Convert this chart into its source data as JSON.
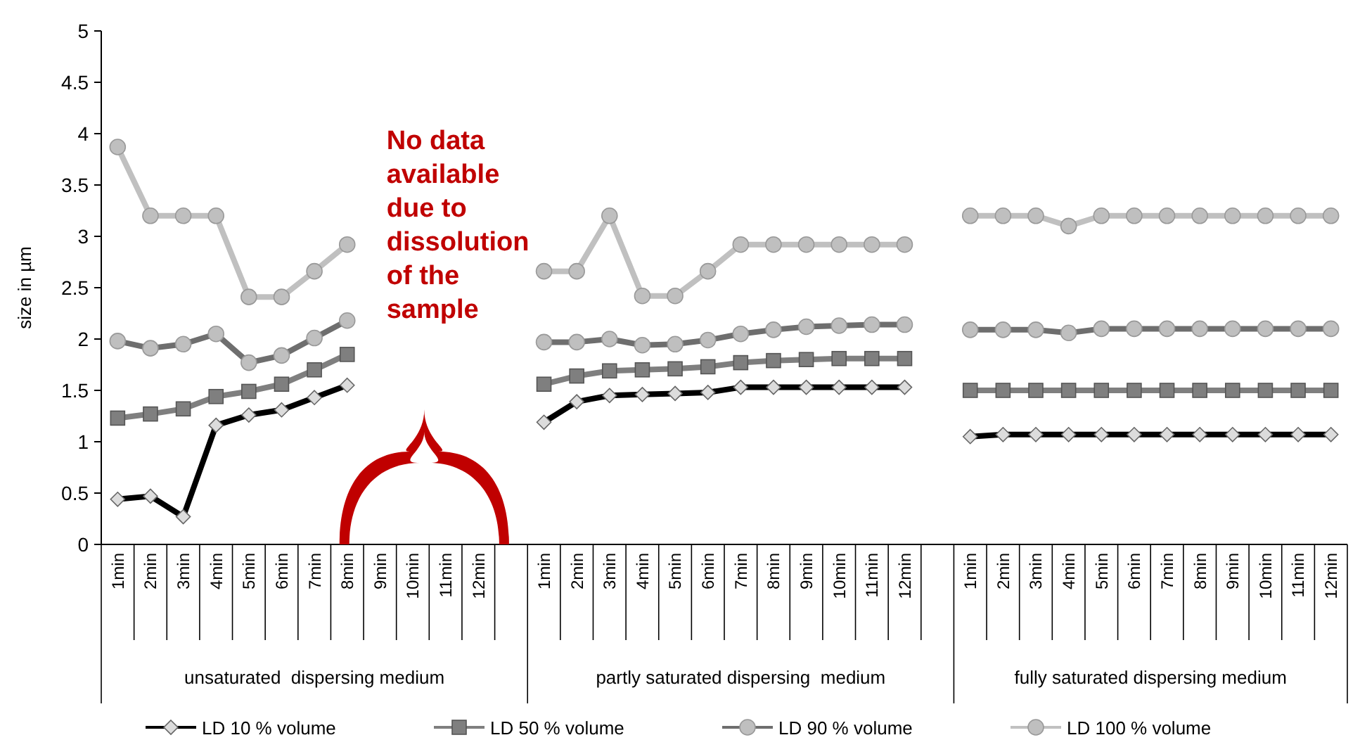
{
  "chart_data": {
    "type": "line",
    "ylabel": "size in µm",
    "ylim": [
      0,
      5
    ],
    "yticks": [
      0,
      0.5,
      1,
      1.5,
      2,
      2.5,
      3,
      3.5,
      4,
      4.5,
      5
    ],
    "grid": false,
    "legend": "bottom",
    "line_style": "solid",
    "categories": [
      "1min",
      "2min",
      "3min",
      "4min",
      "5min",
      "6min",
      "7min",
      "8min",
      "9min",
      "10min",
      "11min",
      "12min",
      null,
      "1min",
      "2min",
      "3min",
      "4min",
      "5min",
      "6min",
      "7min",
      "8min",
      "9min",
      "10min",
      "11min",
      "12min",
      null,
      "1min",
      "2min",
      "3min",
      "4min",
      "5min",
      "6min",
      "7min",
      "8min",
      "9min",
      "10min",
      "11min",
      "12min"
    ],
    "annotations": [
      "No data available due to dissolution of the sample",
      "unsaturated  dispersing medium",
      "partly saturated dispersing  medium",
      "fully saturated dispersing medium"
    ],
    "series": [
      {
        "name": "LD 10 % volume",
        "color": "#000000",
        "marker": "diamond",
        "values": [
          0.44,
          0.47,
          0.27,
          1.16,
          1.26,
          1.31,
          1.43,
          1.55,
          null,
          null,
          null,
          null,
          null,
          1.19,
          1.39,
          1.45,
          1.46,
          1.47,
          1.48,
          1.53,
          1.53,
          1.53,
          1.53,
          1.53,
          1.53,
          null,
          1.05,
          1.07,
          1.07,
          1.07,
          1.07,
          1.07,
          1.07,
          1.07,
          1.07,
          1.07,
          1.07,
          1.07
        ]
      },
      {
        "name": "LD 50 % volume",
        "color": "#7f7f7f",
        "marker": "square",
        "values": [
          1.23,
          1.27,
          1.32,
          1.44,
          1.49,
          1.56,
          1.7,
          1.85,
          null,
          null,
          null,
          null,
          null,
          1.56,
          1.64,
          1.69,
          1.7,
          1.71,
          1.73,
          1.77,
          1.79,
          1.8,
          1.81,
          1.81,
          1.81,
          null,
          1.5,
          1.5,
          1.5,
          1.5,
          1.5,
          1.5,
          1.5,
          1.5,
          1.5,
          1.5,
          1.5,
          1.5
        ]
      },
      {
        "name": "LD 90 % volume",
        "color": "#6e6e6e",
        "marker": "circle",
        "values": [
          1.98,
          1.91,
          1.95,
          2.05,
          1.77,
          1.84,
          2.01,
          2.18,
          null,
          null,
          null,
          null,
          null,
          1.97,
          1.97,
          2.0,
          1.94,
          1.95,
          1.99,
          2.05,
          2.09,
          2.12,
          2.13,
          2.14,
          2.14,
          null,
          2.09,
          2.09,
          2.09,
          2.06,
          2.1,
          2.1,
          2.1,
          2.1,
          2.1,
          2.1,
          2.1,
          2.1
        ]
      },
      {
        "name": "LD 100 % volume",
        "color": "#c0c0c0",
        "marker": "circle",
        "values": [
          3.87,
          3.2,
          3.2,
          3.2,
          2.41,
          2.41,
          2.66,
          2.92,
          null,
          null,
          null,
          null,
          null,
          2.66,
          2.66,
          3.2,
          2.42,
          2.42,
          2.66,
          2.92,
          2.92,
          2.92,
          2.92,
          2.92,
          2.92,
          null,
          3.2,
          3.2,
          3.2,
          3.1,
          3.2,
          3.2,
          3.2,
          3.2,
          3.2,
          3.2,
          3.2,
          3.2
        ]
      }
    ]
  }
}
